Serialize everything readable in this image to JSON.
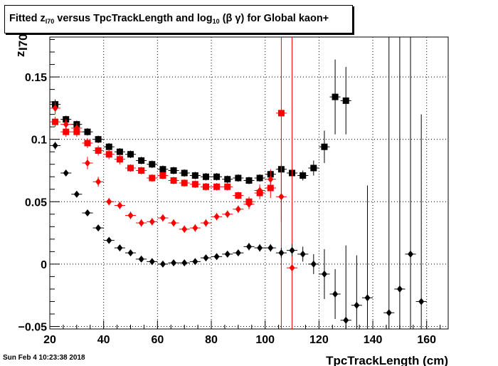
{
  "title": {
    "prefix": "Fitted  z",
    "sub1": "I70",
    "middle": "  versus TpcTrackLength and log",
    "sub2": "10",
    "suffix": " (β γ) for Global kaon+"
  },
  "footer": {
    "date": "Sun Feb  4 10:23:38 2018"
  },
  "chart_data": {
    "type": "scatter",
    "title": "Fitted z_I70 versus TpcTrackLength and log10 (β γ) for Global kaon+",
    "xlabel": "TpcTrackLength (cm)",
    "ylabel_main": "z",
    "ylabel_sub": "I70",
    "xlim": [
      20,
      168
    ],
    "ylim": [
      -0.052,
      0.182
    ],
    "x_ticks": [
      20,
      40,
      60,
      80,
      100,
      120,
      140,
      160
    ],
    "y_ticks": [
      -0.05,
      0,
      0.05,
      0.1,
      0.15
    ],
    "x_tick_labels": [
      "20",
      "40",
      "60",
      "80",
      "100",
      "120",
      "140",
      "160"
    ],
    "y_tick_labels": [
      "−0.05",
      "0",
      "0.05",
      "0.1",
      "0.15"
    ],
    "grid": true,
    "series": [
      {
        "marker": "square",
        "color": "#000000",
        "points": [
          [
            22,
            0.128,
            0.004
          ],
          [
            26,
            0.116,
            0.003
          ],
          [
            30,
            0.112,
            0.003
          ],
          [
            34,
            0.106,
            0.003
          ],
          [
            38,
            0.1,
            0.003
          ],
          [
            42,
            0.094,
            0.003
          ],
          [
            46,
            0.09,
            0.003
          ],
          [
            50,
            0.088,
            0.003
          ],
          [
            54,
            0.083,
            0.003
          ],
          [
            58,
            0.08,
            0.003
          ],
          [
            62,
            0.076,
            0.003
          ],
          [
            66,
            0.075,
            0.003
          ],
          [
            70,
            0.073,
            0.003
          ],
          [
            74,
            0.071,
            0.003
          ],
          [
            78,
            0.07,
            0.003
          ],
          [
            82,
            0.07,
            0.003
          ],
          [
            86,
            0.068,
            0.003
          ],
          [
            90,
            0.069,
            0.003
          ],
          [
            94,
            0.067,
            0.003
          ],
          [
            98,
            0.069,
            0.003
          ],
          [
            102,
            0.072,
            0.003
          ],
          [
            106,
            0.076,
            0.004
          ],
          [
            110,
            0.073,
            0.004
          ],
          [
            114,
            0.071,
            0.004
          ],
          [
            118,
            0.077,
            0.006
          ],
          [
            122,
            0.094,
            0.013
          ],
          [
            126,
            0.134,
            0.03
          ],
          [
            130,
            0.131,
            0.027
          ]
        ]
      },
      {
        "marker": "square",
        "color": "#ff0000",
        "points": [
          [
            22,
            0.114,
            0.004
          ],
          [
            26,
            0.106,
            0.004
          ],
          [
            30,
            0.106,
            0.004
          ],
          [
            34,
            0.097,
            0.004
          ],
          [
            38,
            0.091,
            0.004
          ],
          [
            42,
            0.088,
            0.004
          ],
          [
            46,
            0.084,
            0.004
          ],
          [
            50,
            0.077,
            0.003
          ],
          [
            54,
            0.075,
            0.003
          ],
          [
            58,
            0.069,
            0.003
          ],
          [
            62,
            0.071,
            0.003
          ],
          [
            66,
            0.067,
            0.003
          ],
          [
            70,
            0.065,
            0.003
          ],
          [
            74,
            0.064,
            0.003
          ],
          [
            78,
            0.062,
            0.003
          ],
          [
            82,
            0.062,
            0.003
          ],
          [
            86,
            0.062,
            0.003
          ],
          [
            90,
            0.055,
            0.003
          ],
          [
            94,
            0.05,
            0.004
          ],
          [
            98,
            0.057,
            0.005
          ],
          [
            102,
            0.061,
            0.008
          ],
          [
            106,
            0.121,
            0.8
          ]
        ]
      },
      {
        "marker": "diamond",
        "color": "#ff0000",
        "points": [
          [
            22,
            0.125,
            0.005
          ],
          [
            26,
            0.112,
            0.004
          ],
          [
            30,
            0.109,
            0.004
          ],
          [
            34,
            0.081,
            0.005
          ],
          [
            38,
            0.066,
            0.004
          ],
          [
            42,
            0.05,
            0.003
          ],
          [
            46,
            0.047,
            0.003
          ],
          [
            50,
            0.039,
            0.003
          ],
          [
            54,
            0.033,
            0.003
          ],
          [
            58,
            0.034,
            0.003
          ],
          [
            62,
            0.037,
            0.003
          ],
          [
            66,
            0.033,
            0.003
          ],
          [
            70,
            0.028,
            0.003
          ],
          [
            74,
            0.029,
            0.003
          ],
          [
            78,
            0.033,
            0.003
          ],
          [
            82,
            0.038,
            0.003
          ],
          [
            86,
            0.04,
            0.003
          ],
          [
            90,
            0.044,
            0.003
          ],
          [
            94,
            0.048,
            0.004
          ],
          [
            98,
            0.059,
            0.005
          ],
          [
            102,
            0.068,
            0.008
          ],
          [
            106,
            0.054,
            0.02
          ],
          [
            110,
            -0.003,
            0.8
          ]
        ]
      },
      {
        "marker": "diamond",
        "color": "#000000",
        "points": [
          [
            22,
            0.095,
            0.003
          ],
          [
            26,
            0.073,
            0.002
          ],
          [
            30,
            0.056,
            0.002
          ],
          [
            34,
            0.041,
            0.002
          ],
          [
            38,
            0.029,
            0.002
          ],
          [
            42,
            0.019,
            0.002
          ],
          [
            46,
            0.013,
            0.002
          ],
          [
            50,
            0.009,
            0.002
          ],
          [
            54,
            0.004,
            0.002
          ],
          [
            58,
            0.002,
            0.002
          ],
          [
            62,
            0.0,
            0.002
          ],
          [
            66,
            0.001,
            0.002
          ],
          [
            70,
            0.001,
            0.002
          ],
          [
            74,
            0.002,
            0.002
          ],
          [
            78,
            0.005,
            0.002
          ],
          [
            82,
            0.006,
            0.002
          ],
          [
            86,
            0.008,
            0.002
          ],
          [
            90,
            0.009,
            0.002
          ],
          [
            94,
            0.014,
            0.003
          ],
          [
            98,
            0.013,
            0.003
          ],
          [
            102,
            0.013,
            0.003
          ],
          [
            106,
            0.009,
            0.004
          ],
          [
            110,
            0.011,
            0.005
          ],
          [
            114,
            0.008,
            0.006
          ],
          [
            118,
            0.0,
            0.008
          ],
          [
            122,
            -0.008,
            0.02
          ],
          [
            126,
            -0.024,
            0.02
          ],
          [
            130,
            -0.045,
            0.06
          ],
          [
            134,
            -0.033,
            0.04
          ],
          [
            138,
            -0.027,
            0.09
          ],
          [
            146,
            -0.039,
            0.8
          ],
          [
            150,
            -0.02,
            0.8
          ],
          [
            154,
            0.008,
            0.8
          ],
          [
            158,
            -0.03,
            0.15
          ]
        ]
      }
    ]
  }
}
